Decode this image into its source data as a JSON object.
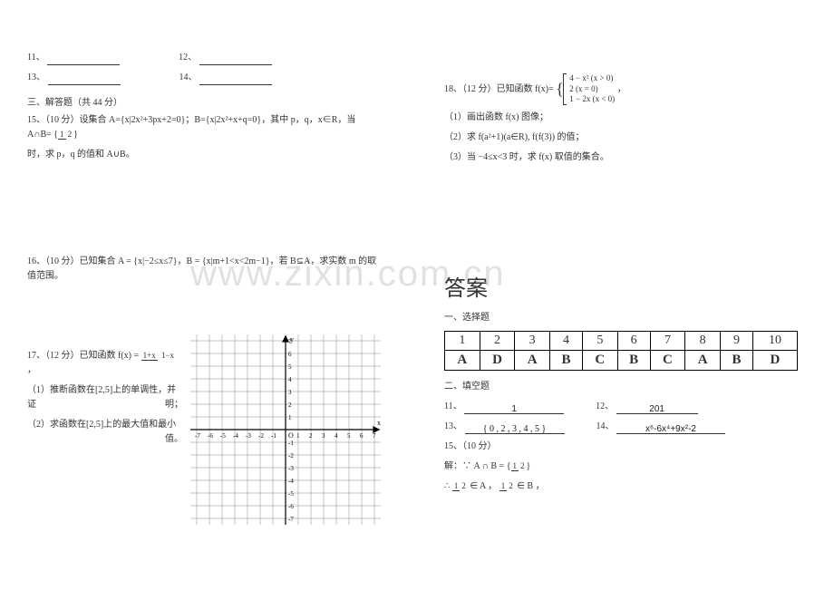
{
  "watermark": "www.zixin.com.cn",
  "left": {
    "fill_blanks": {
      "q11_label": "11、",
      "q12_label": "12、",
      "q13_label": "13、",
      "q14_label": "14、"
    },
    "section3": "三、解答题（共 44 分）",
    "q15": "15、（10 分）设集合 A={x|2x²+3px+2=0}；B={x|2x²+x+q=0}，其中 p，q，x∈R，当 A∩B=",
    "q15_set": "{ 1/2 }",
    "q15_tail": "时，求 p，q 的值和 A∪B。",
    "q16": "16、（10 分）已知集合 A = {x|−2≤x≤7}，B = {x|m+1<x<2m−1}，若 B⊆A，求实数 m 的取值范围。",
    "q17_head": "17、（12 分）已知函数 f(x) = ",
    "q17_frac_n": "1+x",
    "q17_frac_d": "1−x",
    "q17_comma": " ，",
    "q17_1": "（1）推断函数在[2,5]上的单调性，并证",
    "q17_1_tail": "明；",
    "q17_2": "（2）求函数在[2,5]上的最大值和最小",
    "q17_2_tail": "值。",
    "grid": {
      "xmin": -7,
      "xmax": 7,
      "ymin": -7,
      "ymax": 7,
      "cell": 14,
      "axis_color": "#000",
      "grid_color": "#888"
    }
  },
  "right": {
    "q18_head": "18、（12 分）已知函数 f(x)=",
    "q18_cases": {
      "a": "4 − x² (x > 0)",
      "b": "2 (x = 0)",
      "c": "1 − 2x (x < 0)"
    },
    "q18_tail": " ，",
    "q18_1": "（1）画出函数 f(x) 图像；",
    "q18_2": "（2）求 f(a²+1)(a∈R), f(f(3)) 的值；",
    "q18_3": "（3）当 −4≤x<3 时，求 f(x) 取值的集合。",
    "answers_title": "答案",
    "sec1": "一、选择题",
    "choice_nums": [
      "1",
      "2",
      "3",
      "4",
      "5",
      "6",
      "7",
      "8",
      "9",
      "10"
    ],
    "choice_ans": [
      "A",
      "D",
      "A",
      "B",
      "C",
      "B",
      "C",
      "A",
      "B",
      "D"
    ],
    "sec2": "二、填空题",
    "a11_label": "11、",
    "a11_val": "1",
    "a12_label": "12、",
    "a12_val": "201",
    "a13_label": "13、",
    "a13_val": "{ 0 , 2 , 3 , 4 , 5 }",
    "a14_label": "14、",
    "a14_val": "x⁶-6x⁴+9x²-2",
    "q15ans_label": "15、（10 分）",
    "sol1": "解：∵ A ∩ B = ",
    "sol1_set": "{ 1/2 }",
    "sol2_a": "∴ ",
    "sol2_half": "1/2",
    "sol2_b": " ∈ A ，",
    "sol2_c": " ∈ B ，"
  }
}
